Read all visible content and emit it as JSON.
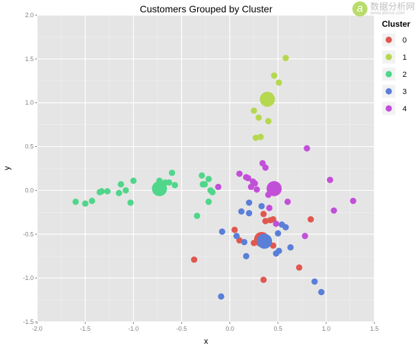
{
  "watermark": {
    "text": "数据分析网",
    "url": "www.afenxi.com"
  },
  "chart_data": {
    "type": "scatter",
    "title": "Customers Grouped by Cluster",
    "xlabel": "x",
    "ylabel": "y",
    "xlim": [
      -2.0,
      1.5
    ],
    "ylim": [
      -1.5,
      2.0
    ],
    "xticks": [
      "-2.0",
      "-1.5",
      "-1.0",
      "-0.5",
      "0.0",
      "0.5",
      "1.0",
      "1.5"
    ],
    "yticks": [
      "-1.5",
      "-1.0",
      "-0.5",
      "0.0",
      "0.5",
      "1.0",
      "1.5",
      "2.0"
    ],
    "grid": true,
    "legend": {
      "title": "Cluster",
      "position": "right"
    },
    "series": [
      {
        "name": "0",
        "color": "#e0574f",
        "points": [
          [
            0.05,
            -0.45
          ],
          [
            0.1,
            -0.57
          ],
          [
            0.25,
            -0.6
          ],
          [
            0.35,
            -0.27
          ],
          [
            0.37,
            -0.35
          ],
          [
            0.42,
            -0.34
          ],
          [
            0.45,
            -0.33
          ],
          [
            0.45,
            -0.63
          ],
          [
            0.72,
            -0.88
          ],
          [
            0.84,
            -0.33
          ],
          [
            -0.37,
            -0.79
          ],
          [
            0.35,
            -1.02
          ]
        ],
        "centroid": [
          0.33,
          -0.56
        ]
      },
      {
        "name": "1",
        "color": "#b5d84f",
        "points": [
          [
            0.58,
            1.51
          ],
          [
            0.46,
            1.31
          ],
          [
            0.51,
            1.23
          ],
          [
            0.25,
            0.91
          ],
          [
            0.3,
            0.83
          ],
          [
            0.4,
            0.79
          ],
          [
            0.32,
            0.61
          ],
          [
            0.27,
            0.6
          ]
        ],
        "centroid": [
          0.39,
          1.04
        ]
      },
      {
        "name": "2",
        "color": "#4fd68a",
        "points": [
          [
            -1.6,
            -0.13
          ],
          [
            -1.5,
            -0.15
          ],
          [
            -1.43,
            -0.12
          ],
          [
            -1.35,
            -0.02
          ],
          [
            -1.33,
            -0.01
          ],
          [
            -1.27,
            -0.01
          ],
          [
            -1.15,
            -0.03
          ],
          [
            -1.13,
            0.07
          ],
          [
            -1.08,
            0.0
          ],
          [
            -1.03,
            -0.14
          ],
          [
            -1.0,
            0.11
          ],
          [
            -0.73,
            0.11
          ],
          [
            -0.67,
            0.09
          ],
          [
            -0.63,
            0.09
          ],
          [
            -0.6,
            0.2
          ],
          [
            -0.57,
            0.06
          ],
          [
            -0.29,
            0.17
          ],
          [
            -0.28,
            0.07
          ],
          [
            -0.26,
            0.07
          ],
          [
            -0.22,
            0.13
          ],
          [
            -0.2,
            0.0
          ],
          [
            -0.18,
            -0.02
          ],
          [
            -0.22,
            -0.13
          ],
          [
            -0.34,
            -0.29
          ]
        ],
        "centroid": [
          -0.73,
          0.02
        ]
      },
      {
        "name": "3",
        "color": "#5a7fd8",
        "points": [
          [
            0.12,
            -0.24
          ],
          [
            0.2,
            -0.14
          ],
          [
            0.2,
            -0.26
          ],
          [
            0.33,
            -0.18
          ],
          [
            0.54,
            -0.39
          ],
          [
            0.58,
            -0.42
          ],
          [
            0.5,
            -0.49
          ],
          [
            -0.08,
            -0.47
          ],
          [
            0.07,
            -0.52
          ],
          [
            0.15,
            -0.59
          ],
          [
            0.17,
            -0.75
          ],
          [
            0.48,
            -0.72
          ],
          [
            0.51,
            -0.69
          ],
          [
            0.63,
            -0.65
          ],
          [
            0.88,
            -1.04
          ],
          [
            0.95,
            -1.16
          ],
          [
            -0.09,
            -1.21
          ]
        ],
        "centroid": [
          0.36,
          -0.58
        ]
      },
      {
        "name": "4",
        "color": "#c24fd8",
        "points": [
          [
            0.8,
            0.48
          ],
          [
            0.34,
            0.31
          ],
          [
            0.37,
            0.26
          ],
          [
            0.1,
            0.19
          ],
          [
            0.17,
            0.15
          ],
          [
            0.19,
            0.14
          ],
          [
            0.24,
            0.1
          ],
          [
            0.26,
            0.08
          ],
          [
            0.22,
            0.04
          ],
          [
            0.28,
            0.01
          ],
          [
            0.4,
            -0.05
          ],
          [
            -0.12,
            0.04
          ],
          [
            1.04,
            0.12
          ],
          [
            0.6,
            -0.13
          ],
          [
            0.41,
            -0.2
          ],
          [
            1.28,
            -0.12
          ],
          [
            1.08,
            -0.23
          ],
          [
            0.48,
            -0.38
          ],
          [
            0.78,
            -0.52
          ]
        ],
        "centroid": [
          0.46,
          0.02
        ]
      }
    ]
  }
}
